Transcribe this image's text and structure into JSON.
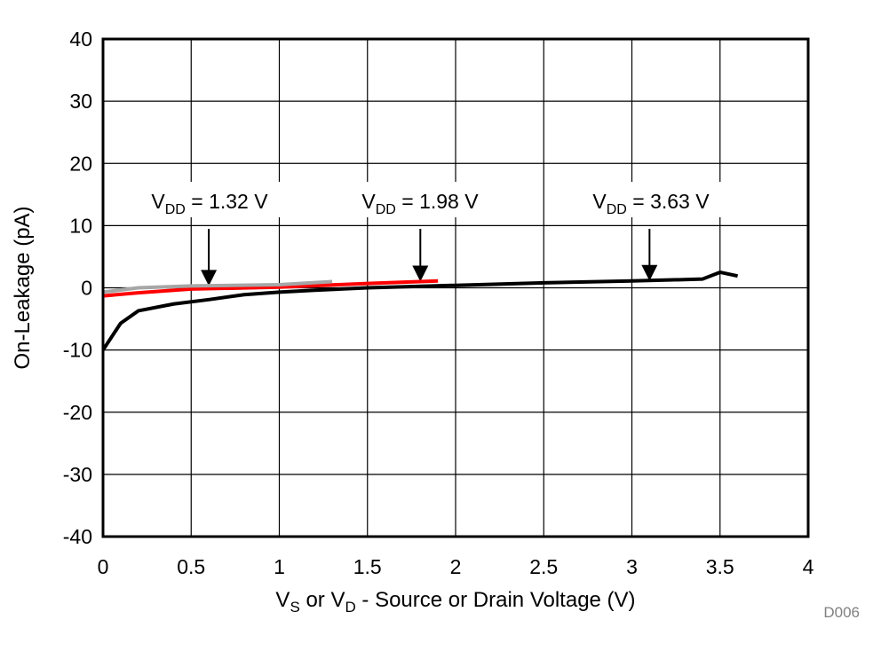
{
  "chart_data": {
    "type": "line",
    "title": "",
    "xlabel": {
      "main": "V",
      "sub1": "S",
      "mid": " or V",
      "sub2": "D",
      "rest": " - Source or Drain Voltage (V)"
    },
    "ylabel": "On-Leakage (pA)",
    "xlim": [
      0,
      4
    ],
    "ylim": [
      -40,
      40
    ],
    "xticks": [
      "0",
      "0.5",
      "1",
      "1.5",
      "2",
      "2.5",
      "3",
      "3.5",
      "4"
    ],
    "yticks": [
      "40",
      "30",
      "20",
      "10",
      "0",
      "-10",
      "-20",
      "-30",
      "-40"
    ],
    "grid": true,
    "legend": "none",
    "series": [
      {
        "color": "#000000",
        "x": [
          0,
          0.1,
          0.2,
          0.4,
          0.6,
          0.8,
          1.0,
          1.2,
          1.5,
          2.0,
          2.5,
          3.0,
          3.4,
          3.5,
          3.6
        ],
        "y": [
          -10,
          -5.7,
          -3.7,
          -2.6,
          -1.9,
          -1.1,
          -0.7,
          -0.4,
          0.0,
          0.4,
          0.8,
          1.1,
          1.4,
          2.5,
          1.9
        ]
      },
      {
        "color": "#ff0000",
        "x": [
          0,
          0.2,
          0.5,
          1.0,
          1.5,
          1.9
        ],
        "y": [
          -1.3,
          -0.8,
          -0.2,
          0.1,
          0.7,
          1.1
        ]
      },
      {
        "color": "#a6a6a6",
        "x": [
          0,
          0.2,
          0.5,
          1.0,
          1.3
        ],
        "y": [
          -0.7,
          0.0,
          0.3,
          0.5,
          1.0
        ]
      }
    ],
    "annotations": [
      {
        "pre": "V",
        "sub": "DD",
        "post": " = 1.32 V",
        "arrow_x": 0.6,
        "arrow_y": 0.3
      },
      {
        "pre": "V",
        "sub": "DD",
        "post": " = 1.98 V",
        "arrow_x": 1.8,
        "arrow_y": 1.0
      },
      {
        "pre": "V",
        "sub": "DD",
        "post": " = 3.63 V",
        "arrow_x": 3.1,
        "arrow_y": 1.1
      }
    ],
    "figure_id": "D006"
  }
}
